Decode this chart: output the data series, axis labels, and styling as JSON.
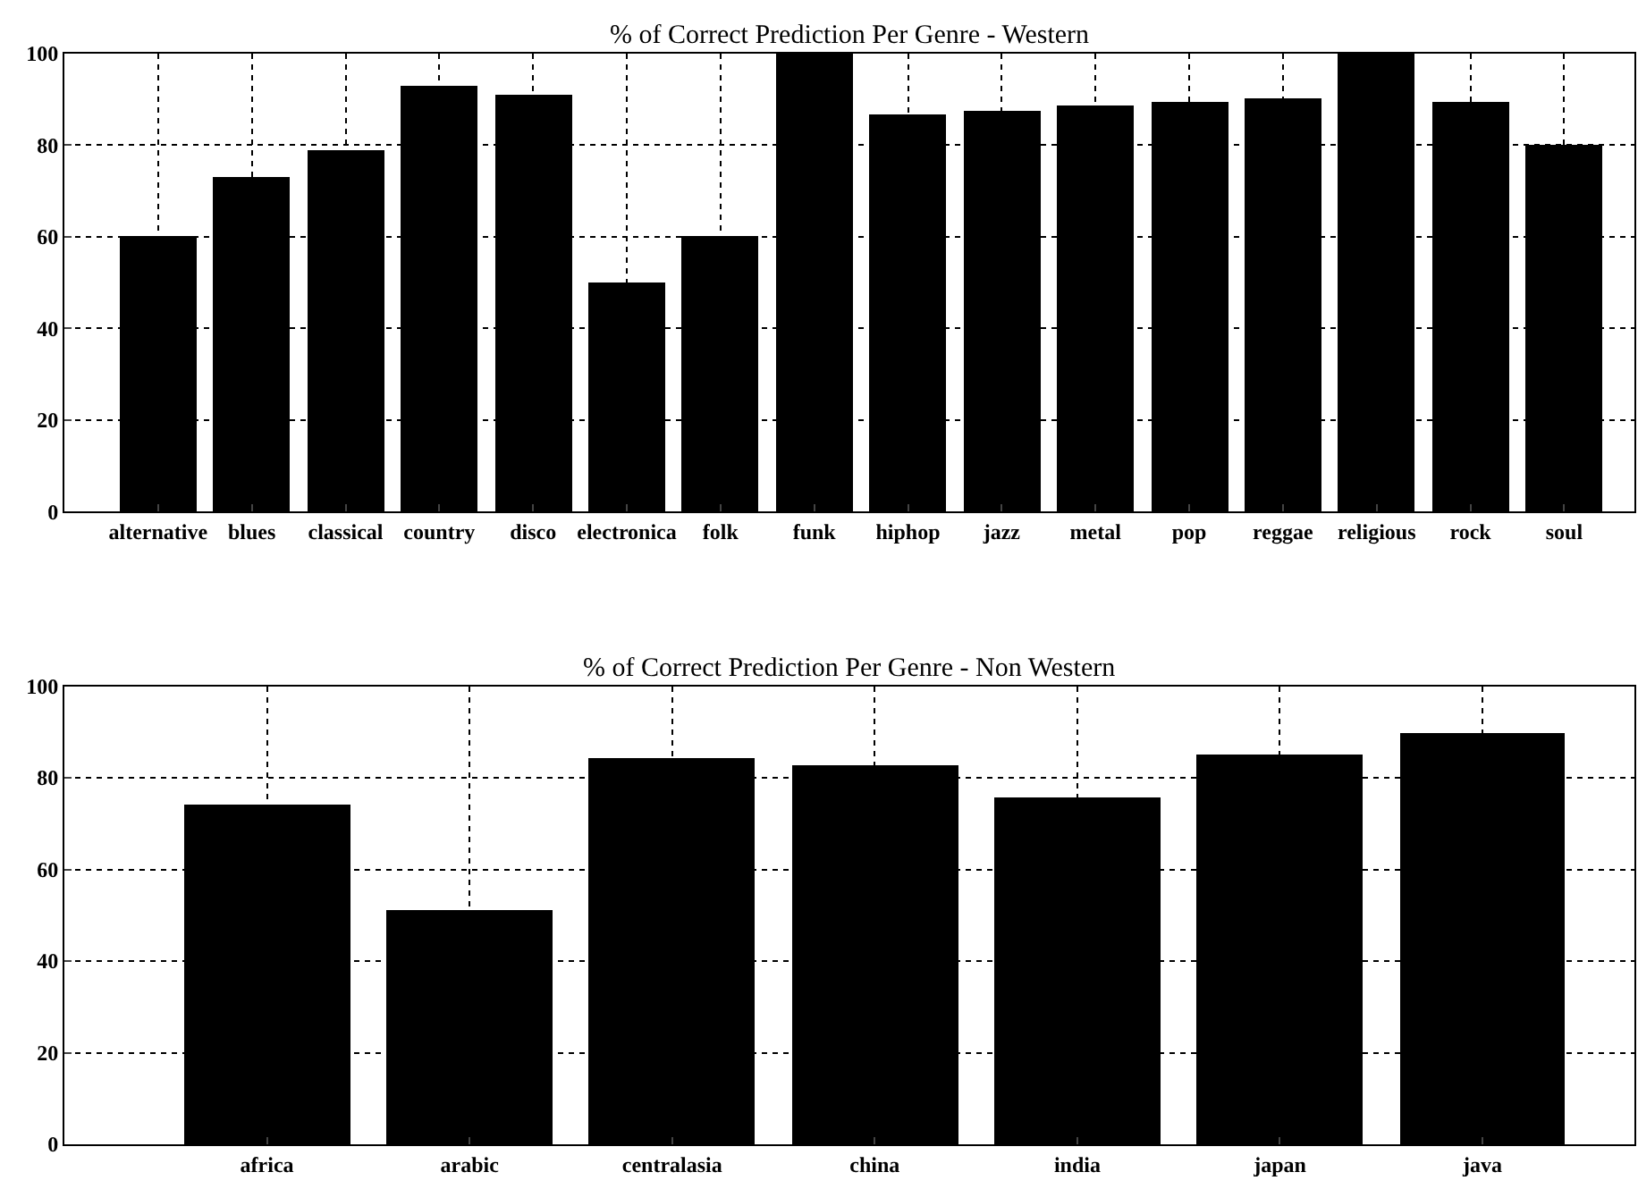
{
  "chart_data": [
    {
      "type": "bar",
      "title": "% of Correct Prediction Per Genre - Western",
      "categories": [
        "alternative",
        "blues",
        "classical",
        "country",
        "disco",
        "electronica",
        "folk",
        "funk",
        "hiphop",
        "jazz",
        "metal",
        "pop",
        "reggae",
        "religious",
        "rock",
        "soul"
      ],
      "series": [
        {
          "color": "#000000",
          "values": [
            60,
            72.9,
            78.9,
            92.9,
            91,
            49.9,
            60,
            100,
            86.7,
            87.6,
            88.5,
            89.4,
            90.3,
            100,
            89.4,
            80
          ]
        }
      ],
      "ylim": [
        0,
        100
      ],
      "yticks": [
        0,
        20,
        40,
        60,
        80,
        100
      ],
      "grid": true
    },
    {
      "type": "bar",
      "title": "% of Correct Prediction Per Genre - Non Western",
      "categories": [
        "africa",
        "arabic",
        "centralasia",
        "china",
        "india",
        "japan",
        "java"
      ],
      "series": [
        {
          "color": "#000000",
          "values": [
            74.3,
            51.4,
            84.2,
            83,
            75.9,
            85.1,
            89.9
          ]
        }
      ],
      "ylim": [
        0,
        100
      ],
      "yticks": [
        0,
        20,
        40,
        60,
        80,
        100
      ],
      "grid": true
    }
  ]
}
